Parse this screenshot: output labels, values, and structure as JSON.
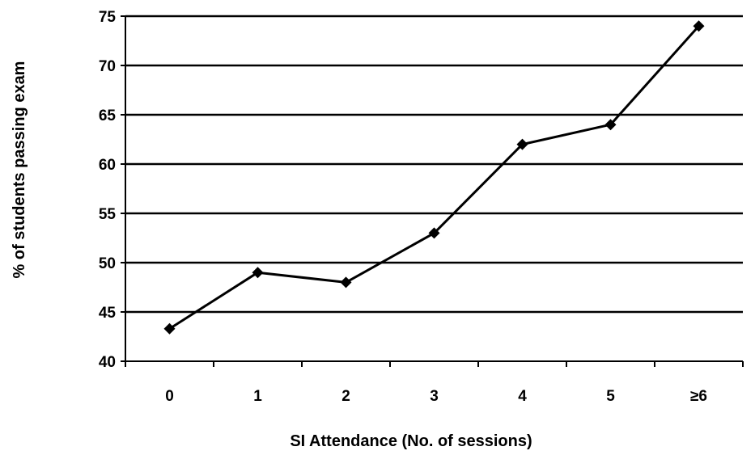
{
  "chart_data": {
    "type": "line",
    "title": "",
    "xlabel": "SI Attendance (No. of sessions)",
    "ylabel": "% of students passing exam",
    "categories": [
      "0",
      "1",
      "2",
      "3",
      "4",
      "5",
      "≥6"
    ],
    "series": [
      {
        "values": [
          43.3,
          49,
          48,
          53,
          62,
          64,
          74
        ],
        "color": "#000000",
        "marker": "diamond"
      }
    ],
    "ylim": [
      40,
      75
    ],
    "yticks": [
      40,
      45,
      50,
      55,
      60,
      65,
      70,
      75
    ],
    "grid": "horizontal",
    "legend": "none"
  }
}
